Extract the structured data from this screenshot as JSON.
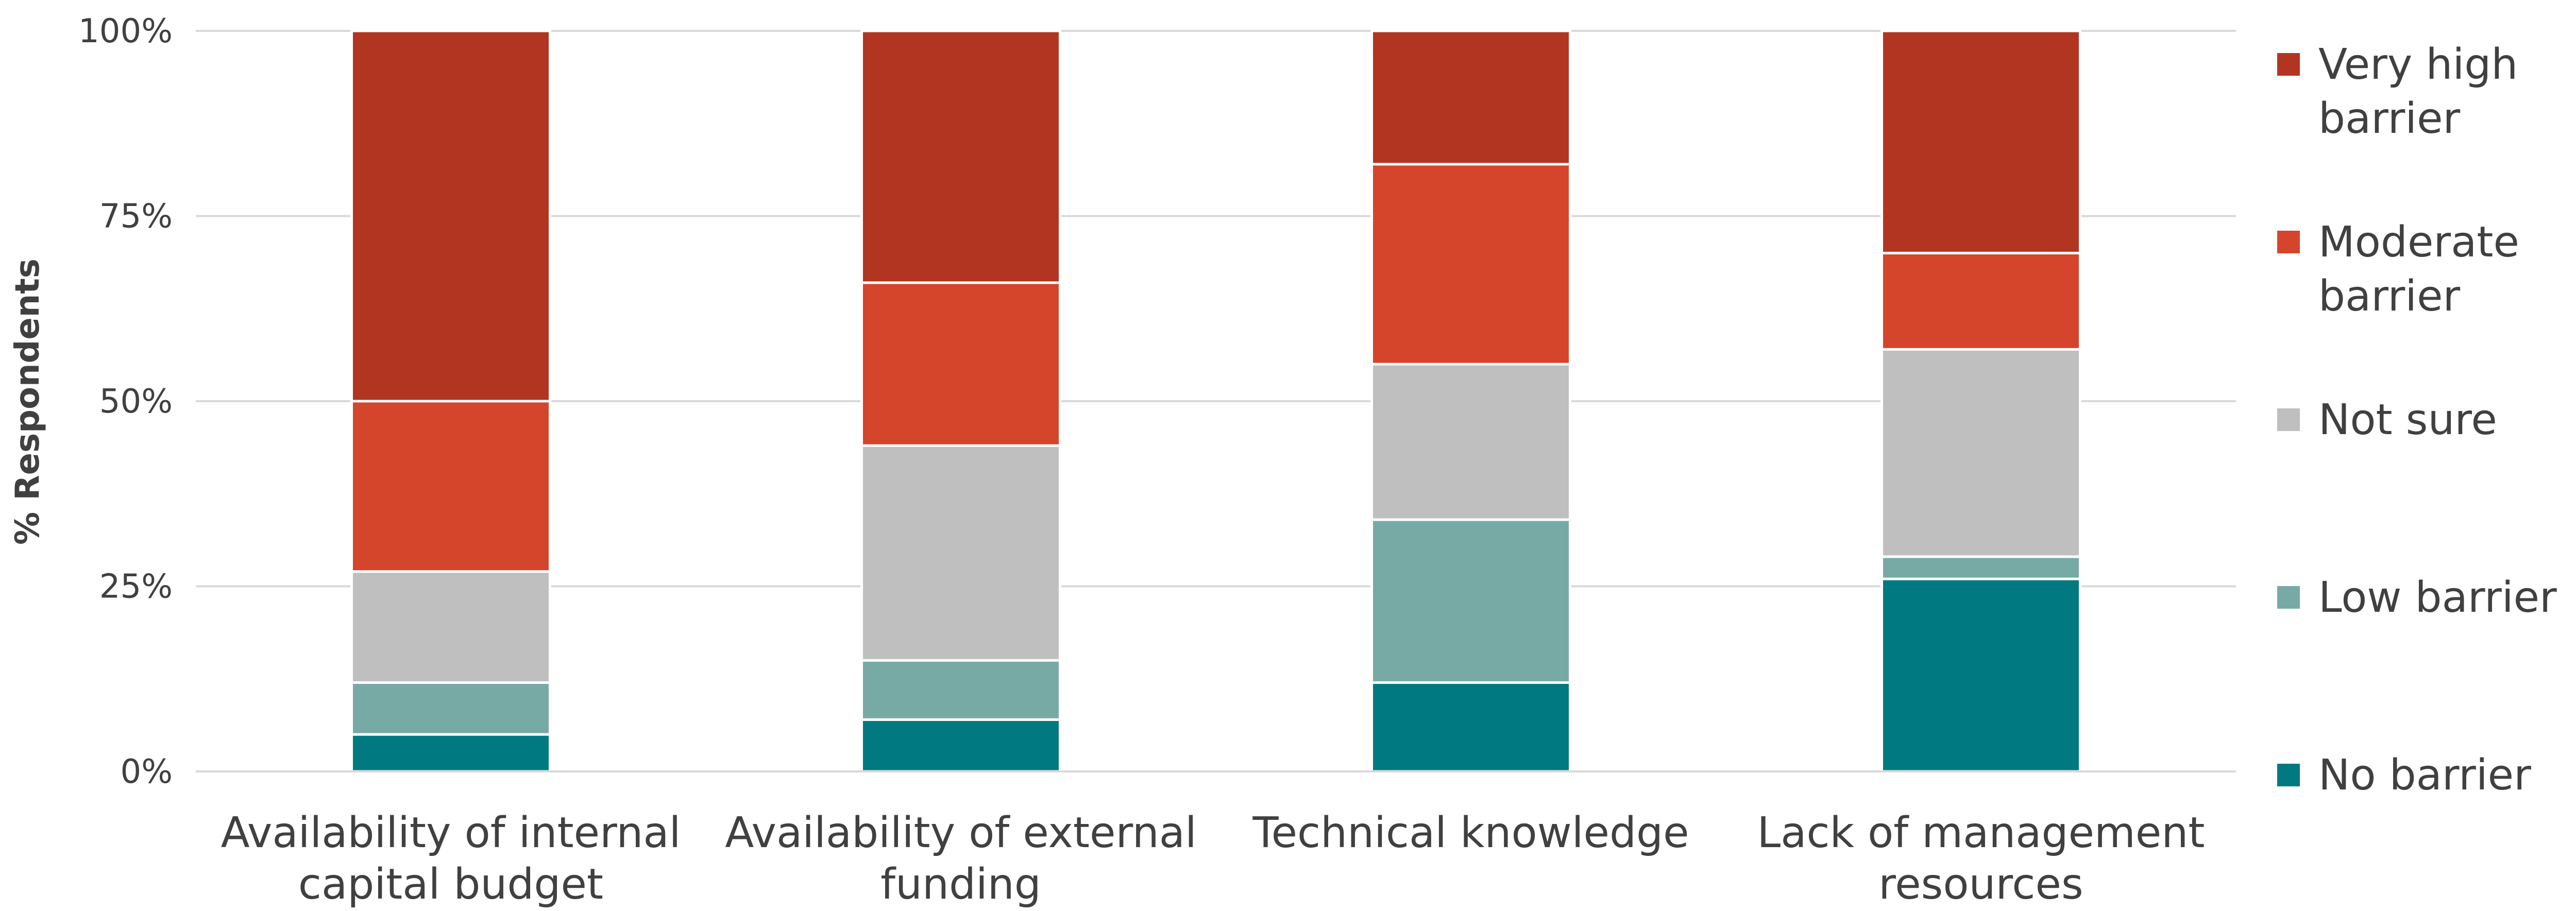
{
  "chart_data": {
    "type": "bar",
    "stacked": true,
    "ylabel": "% Respondents",
    "ylim": [
      0,
      100
    ],
    "yticks": [
      "0%",
      "25%",
      "50%",
      "75%",
      "100%"
    ],
    "grid": true,
    "legend_position": "right",
    "categories": [
      [
        "Availability of internal",
        "capital budget"
      ],
      [
        "Availability of external",
        "funding"
      ],
      [
        "Technical knowledge"
      ],
      [
        "Lack of management",
        "resources"
      ]
    ],
    "series": [
      {
        "name": [
          "No barrier"
        ],
        "color": "#007a80",
        "values": [
          5,
          7,
          12,
          26
        ]
      },
      {
        "name": [
          "Low barrier"
        ],
        "color": "#78aaa5",
        "values": [
          7,
          8,
          22,
          3
        ]
      },
      {
        "name": [
          "Not sure"
        ],
        "color": "#bfbfbf",
        "values": [
          15,
          29,
          21,
          28
        ]
      },
      {
        "name": [
          "Moderate",
          "barrier"
        ],
        "color": "#d4452b",
        "values": [
          23,
          22,
          27,
          13
        ]
      },
      {
        "name": [
          "Very high",
          "barrier"
        ],
        "color": "#b23521",
        "values": [
          50,
          34,
          18,
          30
        ]
      }
    ]
  }
}
